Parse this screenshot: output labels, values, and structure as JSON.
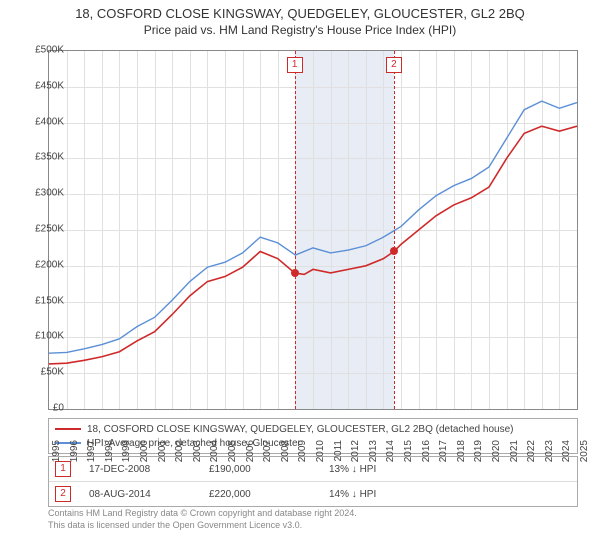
{
  "title_line1": "18, COSFORD CLOSE KINGSWAY, QUEDGELEY, GLOUCESTER, GL2 2BQ",
  "title_line2": "Price paid vs. HM Land Registry's House Price Index (HPI)",
  "chart": {
    "type": "line",
    "background_color": "#ffffff",
    "grid_color": "#e0e0e0",
    "border_color": "#888888",
    "label_color": "#444444",
    "label_fontsize": 10,
    "title_fontsize": 13,
    "ylim": [
      0,
      500000
    ],
    "ytick_step": 50000,
    "ytick_labels": [
      "£0",
      "£50K",
      "£100K",
      "£150K",
      "£200K",
      "£250K",
      "£300K",
      "£350K",
      "£400K",
      "£450K",
      "£500K"
    ],
    "xlim": [
      1995,
      2025
    ],
    "xtick_step": 1,
    "xtick_labels": [
      "1995",
      "1996",
      "1997",
      "1998",
      "1999",
      "2000",
      "2001",
      "2002",
      "2003",
      "2004",
      "2005",
      "2006",
      "2007",
      "2008",
      "2009",
      "2010",
      "2011",
      "2012",
      "2013",
      "2014",
      "2015",
      "2016",
      "2017",
      "2018",
      "2019",
      "2020",
      "2021",
      "2022",
      "2023",
      "2024",
      "2025"
    ],
    "shaded_region": {
      "x_from": 2008.96,
      "x_to": 2014.6,
      "color": "#e8edf5"
    },
    "series": [
      {
        "name": "price_paid",
        "color": "#cf2a2a",
        "line_width": 1.6,
        "data": [
          [
            1995,
            63000
          ],
          [
            1996,
            64000
          ],
          [
            1997,
            68000
          ],
          [
            1998,
            73000
          ],
          [
            1999,
            80000
          ],
          [
            2000,
            95000
          ],
          [
            2001,
            108000
          ],
          [
            2002,
            132000
          ],
          [
            2003,
            158000
          ],
          [
            2004,
            178000
          ],
          [
            2005,
            185000
          ],
          [
            2006,
            198000
          ],
          [
            2007,
            220000
          ],
          [
            2008,
            210000
          ],
          [
            2008.96,
            190000
          ],
          [
            2009.5,
            188000
          ],
          [
            2010,
            195000
          ],
          [
            2011,
            190000
          ],
          [
            2012,
            195000
          ],
          [
            2013,
            200000
          ],
          [
            2014,
            210000
          ],
          [
            2014.6,
            220000
          ],
          [
            2015,
            230000
          ],
          [
            2016,
            250000
          ],
          [
            2017,
            270000
          ],
          [
            2018,
            285000
          ],
          [
            2019,
            295000
          ],
          [
            2020,
            310000
          ],
          [
            2021,
            350000
          ],
          [
            2022,
            385000
          ],
          [
            2023,
            395000
          ],
          [
            2024,
            388000
          ],
          [
            2025,
            395000
          ]
        ]
      },
      {
        "name": "hpi",
        "color": "#5b8fd6",
        "line_width": 1.4,
        "data": [
          [
            1995,
            78000
          ],
          [
            1996,
            79000
          ],
          [
            1997,
            84000
          ],
          [
            1998,
            90000
          ],
          [
            1999,
            98000
          ],
          [
            2000,
            115000
          ],
          [
            2001,
            128000
          ],
          [
            2002,
            152000
          ],
          [
            2003,
            178000
          ],
          [
            2004,
            198000
          ],
          [
            2005,
            205000
          ],
          [
            2006,
            218000
          ],
          [
            2007,
            240000
          ],
          [
            2008,
            232000
          ],
          [
            2009,
            215000
          ],
          [
            2010,
            225000
          ],
          [
            2011,
            218000
          ],
          [
            2012,
            222000
          ],
          [
            2013,
            228000
          ],
          [
            2014,
            240000
          ],
          [
            2015,
            255000
          ],
          [
            2016,
            278000
          ],
          [
            2017,
            298000
          ],
          [
            2018,
            312000
          ],
          [
            2019,
            322000
          ],
          [
            2020,
            338000
          ],
          [
            2021,
            378000
          ],
          [
            2022,
            418000
          ],
          [
            2023,
            430000
          ],
          [
            2024,
            420000
          ],
          [
            2025,
            428000
          ]
        ]
      }
    ],
    "markers": [
      {
        "id": "1",
        "x": 2008.96,
        "y": 190000
      },
      {
        "id": "2",
        "x": 2014.6,
        "y": 220000
      }
    ],
    "marker_box_color": "#cf2a2a",
    "point_color": "#cf2a2a",
    "point_radius": 4
  },
  "legend": {
    "series": [
      {
        "color": "#cf2a2a",
        "label": "18, COSFORD CLOSE KINGSWAY, QUEDGELEY, GLOUCESTER, GL2 2BQ (detached house)"
      },
      {
        "color": "#5b8fd6",
        "label": "HPI: Average price, detached house, Gloucester"
      }
    ]
  },
  "records": [
    {
      "id": "1",
      "date": "17-DEC-2008",
      "price": "£190,000",
      "delta": "13% ↓ HPI"
    },
    {
      "id": "2",
      "date": "08-AUG-2014",
      "price": "£220,000",
      "delta": "14% ↓ HPI"
    }
  ],
  "attribution_line1": "Contains HM Land Registry data © Crown copyright and database right 2024.",
  "attribution_line2": "This data is licensed under the Open Government Licence v3.0."
}
